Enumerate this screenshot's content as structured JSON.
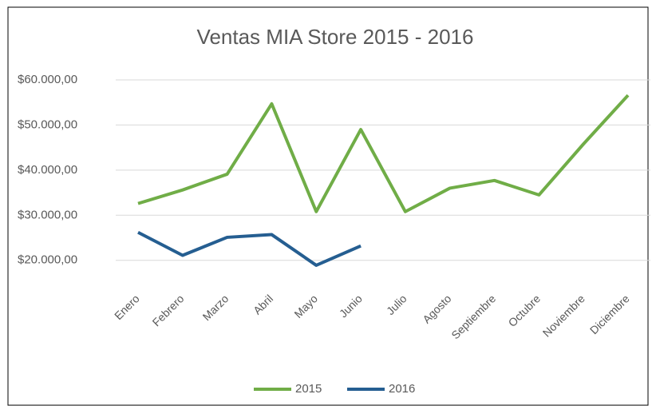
{
  "chart_data": {
    "type": "line",
    "title": "Ventas MIA Store 2015 - 2016",
    "categories": [
      "Enero",
      "Febrero",
      "Marzo",
      "Abril",
      "Mayo",
      "Junio",
      "Julio",
      "Agosto",
      "Septiembre",
      "Octubre",
      "Noviembre",
      "Diciembre"
    ],
    "series": [
      {
        "name": "2015",
        "color": "#70ad47",
        "values": [
          32600,
          35600,
          39100,
          54700,
          30800,
          49000,
          30800,
          36000,
          37700,
          34500,
          45800,
          56600
        ]
      },
      {
        "name": "2016",
        "color": "#255e91",
        "values": [
          26200,
          21100,
          25100,
          25700,
          18900,
          23200,
          null,
          null,
          null,
          null,
          null,
          null
        ]
      }
    ],
    "ylim": [
      18000,
      60000
    ],
    "yticks": [
      {
        "value": 20000,
        "label": "$20.000,00"
      },
      {
        "value": 30000,
        "label": "$30.000,00"
      },
      {
        "value": 40000,
        "label": "$40.000,00"
      },
      {
        "value": 50000,
        "label": "$50.000,00"
      },
      {
        "value": 60000,
        "label": "$60.000,00"
      }
    ],
    "grid": true,
    "legend": "bottom"
  }
}
